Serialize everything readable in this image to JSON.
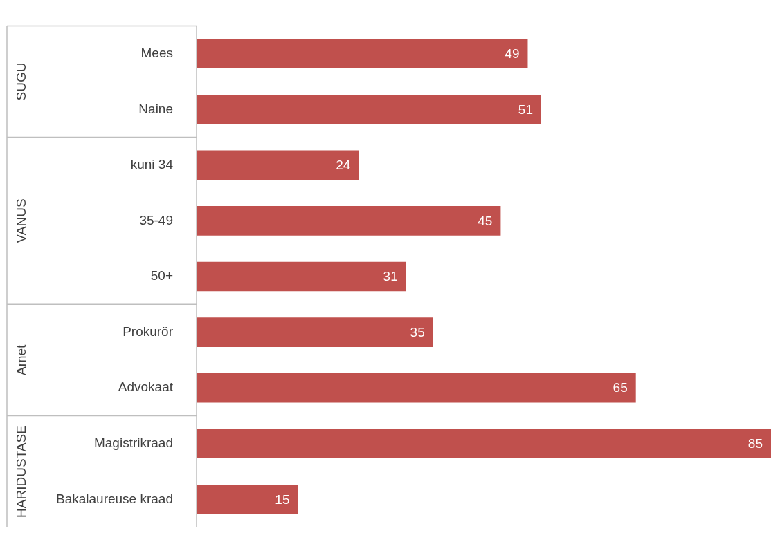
{
  "chart_data": {
    "type": "bar",
    "orientation": "horizontal",
    "categories": [
      "Mees",
      "Naine",
      "kuni 34",
      "35-49",
      "50+",
      "Prokurör",
      "Advokaat",
      "Magistrikraad",
      "Bakalaureuse kraad"
    ],
    "values": [
      49,
      51,
      24,
      45,
      31,
      35,
      65,
      85,
      15
    ],
    "color": "#c0504d",
    "xlim": [
      0,
      85
    ],
    "data_labels": true,
    "legend": false,
    "annotations": [
      "SUGU",
      "VANUS",
      "Amet",
      "HARIDUSTASE"
    ]
  }
}
